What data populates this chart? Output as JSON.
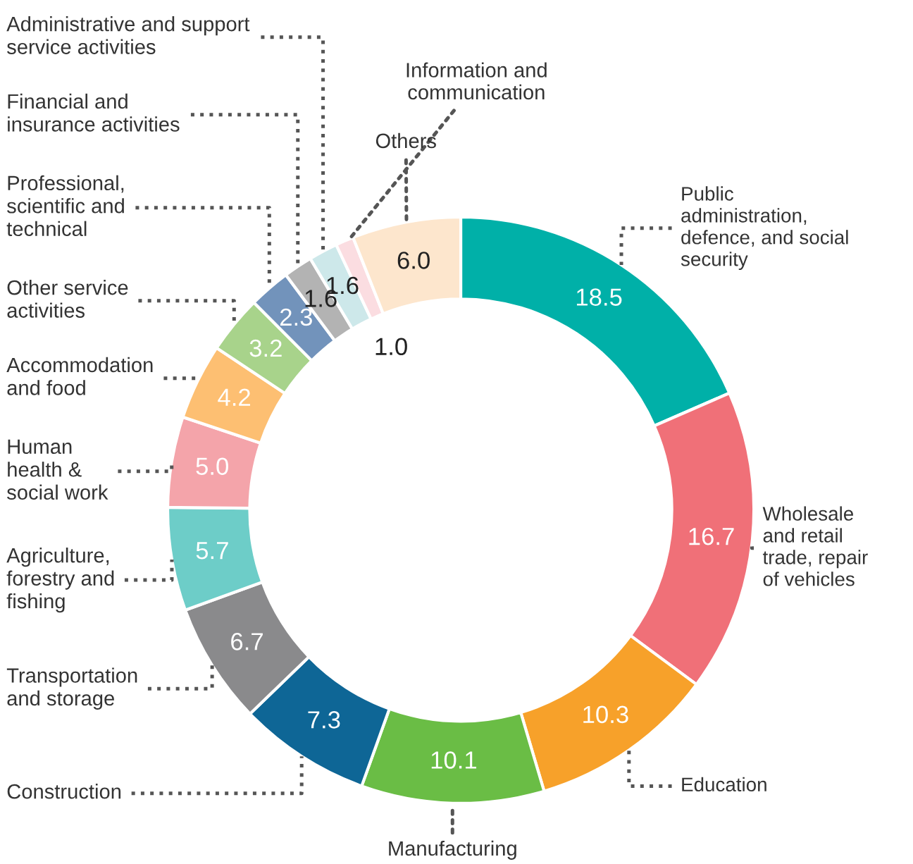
{
  "chart_data": {
    "type": "donut",
    "categories": [
      "Public\nadministration,\ndefence, and social\nsecurity",
      "Wholesale\nand retail\ntrade, repair\nof vehicles",
      "Education",
      "Manufacturing",
      "Construction",
      "Transportation\nand storage",
      "Agriculture,\nforestry and\nfishing",
      "Human\nhealth &\nsocial work",
      "Accommodation\nand food",
      "Other service\nactivities",
      "Professional,\nscientific and\ntechnical",
      "Financial and\ninsurance activities",
      "Administrative and support\nservice activities",
      "Information and\ncommunication",
      "Others"
    ],
    "values": [
      18.5,
      16.7,
      10.3,
      10.1,
      7.3,
      6.7,
      5.7,
      5.0,
      4.2,
      3.2,
      2.3,
      1.6,
      1.6,
      1.0,
      6.0
    ],
    "colors": [
      "#00b0a8",
      "#f07078",
      "#f7a12a",
      "#6abd45",
      "#0e6696",
      "#8a8a8c",
      "#6dcdc8",
      "#f4a4aa",
      "#fdbf72",
      "#a8d38b",
      "#7293bb",
      "#b3b3b3",
      "#cde8ea",
      "#fbdde1",
      "#fde6cd"
    ],
    "value_labels": [
      "18.5",
      "16.7",
      "10.3",
      "10.1",
      "7.3",
      "6.7",
      "5.7",
      "5.0",
      "4.2",
      "3.2",
      "2.3",
      "1.6",
      "1.6",
      "1.0",
      "6.0"
    ]
  }
}
